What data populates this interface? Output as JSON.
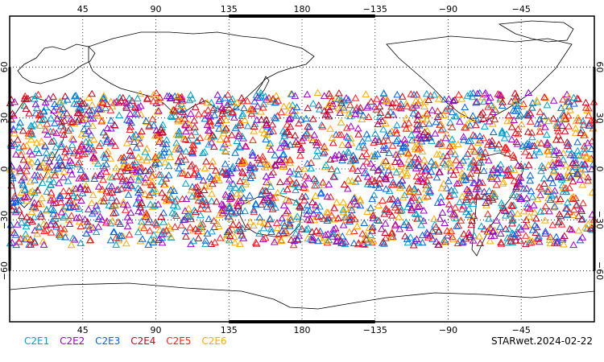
{
  "map": {
    "top_lon_labels": [
      "45",
      "90",
      "135",
      "180",
      "−135",
      "−90",
      "−45"
    ],
    "bottom_lon_labels": [
      "45",
      "90",
      "135",
      "180",
      "−135",
      "−90",
      "−45"
    ],
    "lat_labels": [
      "60",
      "30",
      "0",
      "−30",
      "−60"
    ],
    "lon_values": [
      45,
      90,
      135,
      180,
      225,
      270,
      315
    ],
    "lat_values": [
      60,
      30,
      0,
      -30,
      -60
    ],
    "lon_range": [
      0,
      360
    ],
    "lat_range": [
      -90,
      90
    ],
    "grid": "dotted",
    "marker": "triangle-outline",
    "observation_band_lat": [
      -45,
      45
    ]
  },
  "legend": {
    "items": [
      {
        "label": "C2E1",
        "color": "#00a0c8"
      },
      {
        "label": "C2E2",
        "color": "#9b00c8"
      },
      {
        "label": "C2E3",
        "color": "#0064dc"
      },
      {
        "label": "C2E4",
        "color": "#c8001e"
      },
      {
        "label": "C2E5",
        "color": "#ff1e1e"
      },
      {
        "label": "C2E6",
        "color": "#ffaa00"
      }
    ]
  },
  "stamp": "STARwet.2024-02-22"
}
